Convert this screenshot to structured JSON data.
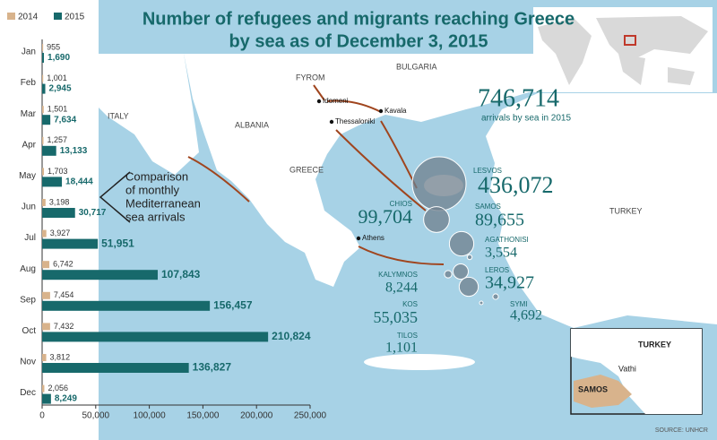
{
  "chart_data": {
    "type": "bar",
    "orientation": "horizontal",
    "title": [
      "Number of refugees and migrants reaching Greece",
      "by sea as of December 3, 2015"
    ],
    "categories": [
      "Jan",
      "Feb",
      "Mar",
      "Apr",
      "May",
      "Jun",
      "Jul",
      "Aug",
      "Sep",
      "Oct",
      "Nov",
      "Dec"
    ],
    "series": [
      {
        "name": "2014",
        "color": "#d8b38c",
        "values": [
          955,
          1001,
          1501,
          1257,
          1703,
          3198,
          3927,
          6742,
          7454,
          7432,
          3812,
          2056
        ],
        "value_labels": [
          "955",
          "1,001",
          "1,501",
          "1,257",
          "1,703",
          "3,198",
          "3,927",
          "6,742",
          "7,454",
          "7,432",
          "3,812",
          "2,056"
        ]
      },
      {
        "name": "2015",
        "color": "#17696b",
        "values": [
          1690,
          2945,
          7634,
          13133,
          18444,
          30717,
          51951,
          107843,
          156457,
          210824,
          136827,
          8249
        ],
        "value_labels": [
          "1,690",
          "2,945",
          "7,634",
          "13,133",
          "18,444",
          "30,717",
          "51,951",
          "107,843",
          "156,457",
          "210,824",
          "136,827",
          "8,249"
        ]
      }
    ],
    "xlim": [
      0,
      250000
    ],
    "xticks": [
      0,
      {
        "value": 50000,
        "label": "50,000"
      },
      {
        "value": 100000,
        "label": "100,000"
      },
      {
        "value": 150000,
        "label": "150,000"
      },
      {
        "value": 200000,
        "label": "200,000"
      },
      {
        "value": 250000,
        "label": "250,000"
      }
    ],
    "legend": "top-left",
    "annotation": [
      "Comparison",
      "of monthly",
      "Mediterranean",
      "sea arrivals"
    ]
  },
  "map": {
    "countries": [
      "ITALY",
      "ALBANIA",
      "FYROM",
      "BULGARIA",
      "GREECE",
      "TURKEY"
    ],
    "cities": [
      "Idomeni",
      "Thessaloniki",
      "Kavala",
      "Athens"
    ],
    "total": {
      "value": 746714,
      "label": "746,714",
      "caption": "arrivals by sea in 2015"
    },
    "islands": [
      {
        "name": "LESVOS",
        "value": 436072,
        "label": "436,072"
      },
      {
        "name": "CHIOS",
        "value": 99704,
        "label": "99,704"
      },
      {
        "name": "SAMOS",
        "value": 89655,
        "label": "89,655"
      },
      {
        "name": "AGATHONISI",
        "value": 3554,
        "label": "3,554"
      },
      {
        "name": "KALYMNOS",
        "value": 8244,
        "label": "8,244"
      },
      {
        "name": "LEROS",
        "value": 34927,
        "label": "34,927"
      },
      {
        "name": "KOS",
        "value": 55035,
        "label": "55,035"
      },
      {
        "name": "SYMI",
        "value": 4692,
        "label": "4,692"
      },
      {
        "name": "TILOS",
        "value": 1101,
        "label": "1,101"
      }
    ],
    "inset": [
      "TURKEY",
      "Vathi",
      "SAMOS"
    ],
    "source": "SOURCE: UNHCR"
  }
}
